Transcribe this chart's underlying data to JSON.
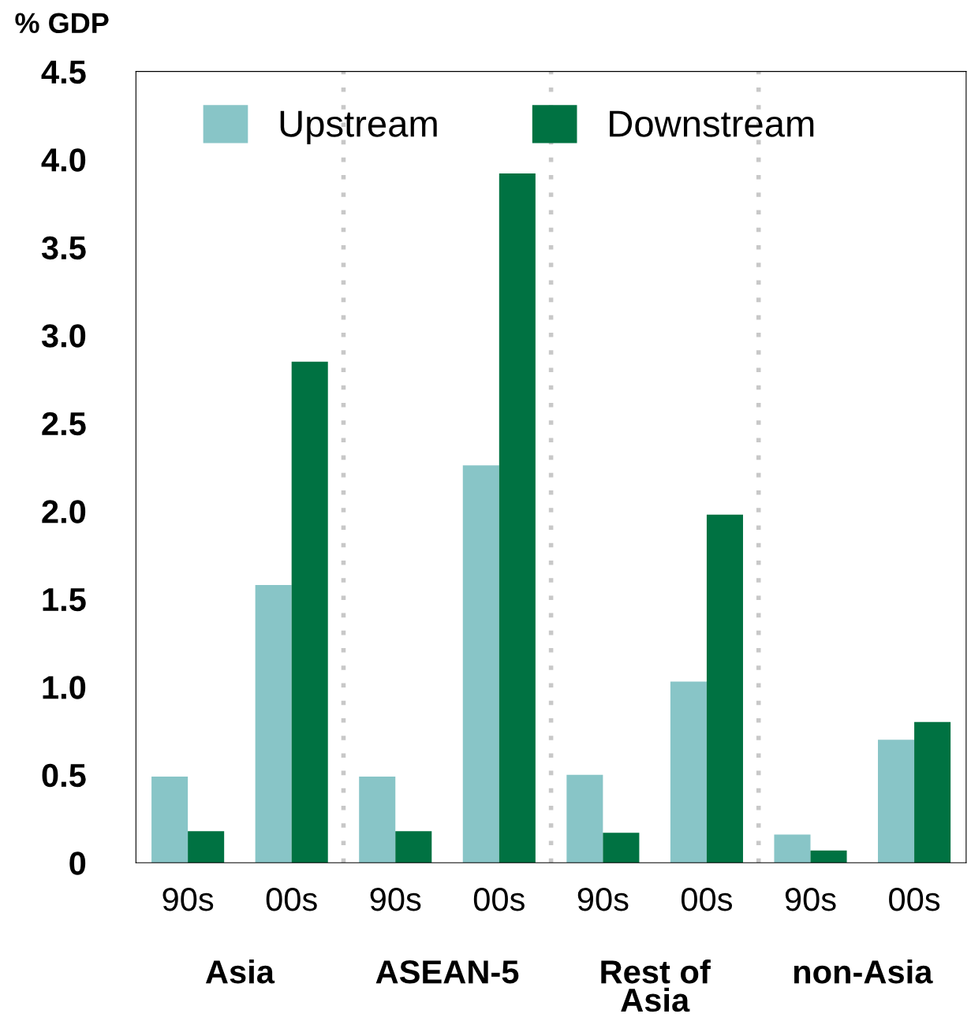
{
  "chart_data": {
    "type": "bar",
    "ylabel": "% GDP",
    "categories": [
      "90s",
      "00s",
      "90s",
      "00s",
      "90s",
      "00s",
      "90s",
      "00s"
    ],
    "series": [
      {
        "name": "Upstream",
        "color": "#88c5c7",
        "values": [
          0.49,
          1.58,
          0.49,
          2.26,
          0.5,
          1.03,
          0.16,
          0.7
        ]
      },
      {
        "name": "Downstream",
        "color": "#007242",
        "values": [
          0.18,
          2.85,
          0.18,
          3.92,
          0.17,
          1.98,
          0.07,
          0.8
        ]
      }
    ],
    "annotations": [
      "Asia",
      "ASEAN-5",
      "Rest of\nAsia",
      "non-Asia"
    ],
    "ylim": [
      0,
      4.5
    ],
    "yticks": [
      0,
      0.5,
      {
        "value": 1,
        "label": "1.0"
      },
      1.5,
      {
        "value": 2,
        "label": "2.0"
      },
      2.5,
      {
        "value": 3,
        "label": "3.0"
      },
      3.5,
      {
        "value": 4,
        "label": "4.0"
      },
      4.5
    ],
    "grid": false,
    "legend": "top"
  }
}
